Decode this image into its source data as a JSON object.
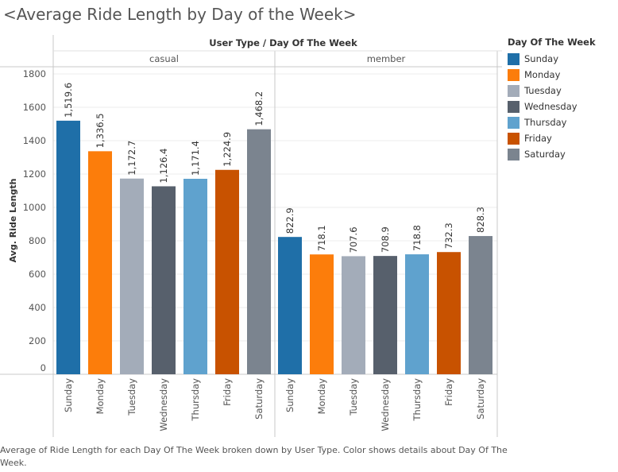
{
  "chart_data": {
    "type": "bar",
    "title": "<Average Ride Length by Day of the Week>",
    "header": "User Type  /  Day Of The Week",
    "ylabel": "Avg. Ride Length",
    "ylim": [
      0,
      1800
    ],
    "yticks": [
      0,
      200,
      400,
      600,
      800,
      1000,
      1200,
      1400,
      1600,
      1800
    ],
    "grid": true,
    "legend_position": "right",
    "categories": [
      "Sunday",
      "Monday",
      "Tuesday",
      "Wednesday",
      "Thursday",
      "Friday",
      "Saturday"
    ],
    "colors": [
      "#1f6fa8",
      "#fc7d0b",
      "#a3acb9",
      "#57606c",
      "#5fa2ce",
      "#c85200",
      "#7b848f"
    ],
    "panels": [
      {
        "name": "casual",
        "values": [
          1519.6,
          1336.5,
          1172.7,
          1126.4,
          1171.4,
          1224.9,
          1468.2
        ],
        "labels": [
          "1,519.6",
          "1,336.5",
          "1,172.7",
          "1,126.4",
          "1,171.4",
          "1,224.9",
          "1,468.2"
        ]
      },
      {
        "name": "member",
        "values": [
          822.9,
          718.1,
          707.6,
          708.9,
          718.8,
          732.3,
          828.3
        ],
        "labels": [
          "822.9",
          "718.1",
          "707.6",
          "708.9",
          "718.8",
          "732.3",
          "828.3"
        ]
      }
    ],
    "legend_title": "Day Of The Week",
    "caption": "Average of Ride Length for each Day Of The Week broken down by User Type.  Color shows details about Day Of The Week."
  }
}
